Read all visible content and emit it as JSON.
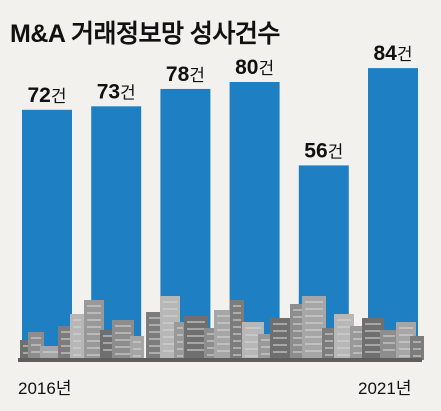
{
  "title": "M&A 거래정보망 성사건수",
  "x_axis": {
    "first_label": "2016년",
    "last_label": "2021년"
  },
  "chart_data": {
    "type": "bar",
    "title": "M&A 거래정보망 성사건수",
    "categories": [
      "2016년",
      "",
      "",
      "",
      "",
      "2021년"
    ],
    "values": [
      72,
      73,
      78,
      80,
      56,
      84
    ],
    "value_suffix": "건",
    "ylim": [
      0,
      100
    ],
    "grid": false,
    "colors": {
      "bar": "#1e80c2",
      "city": "#8d8d8d",
      "text": "#111111"
    }
  }
}
